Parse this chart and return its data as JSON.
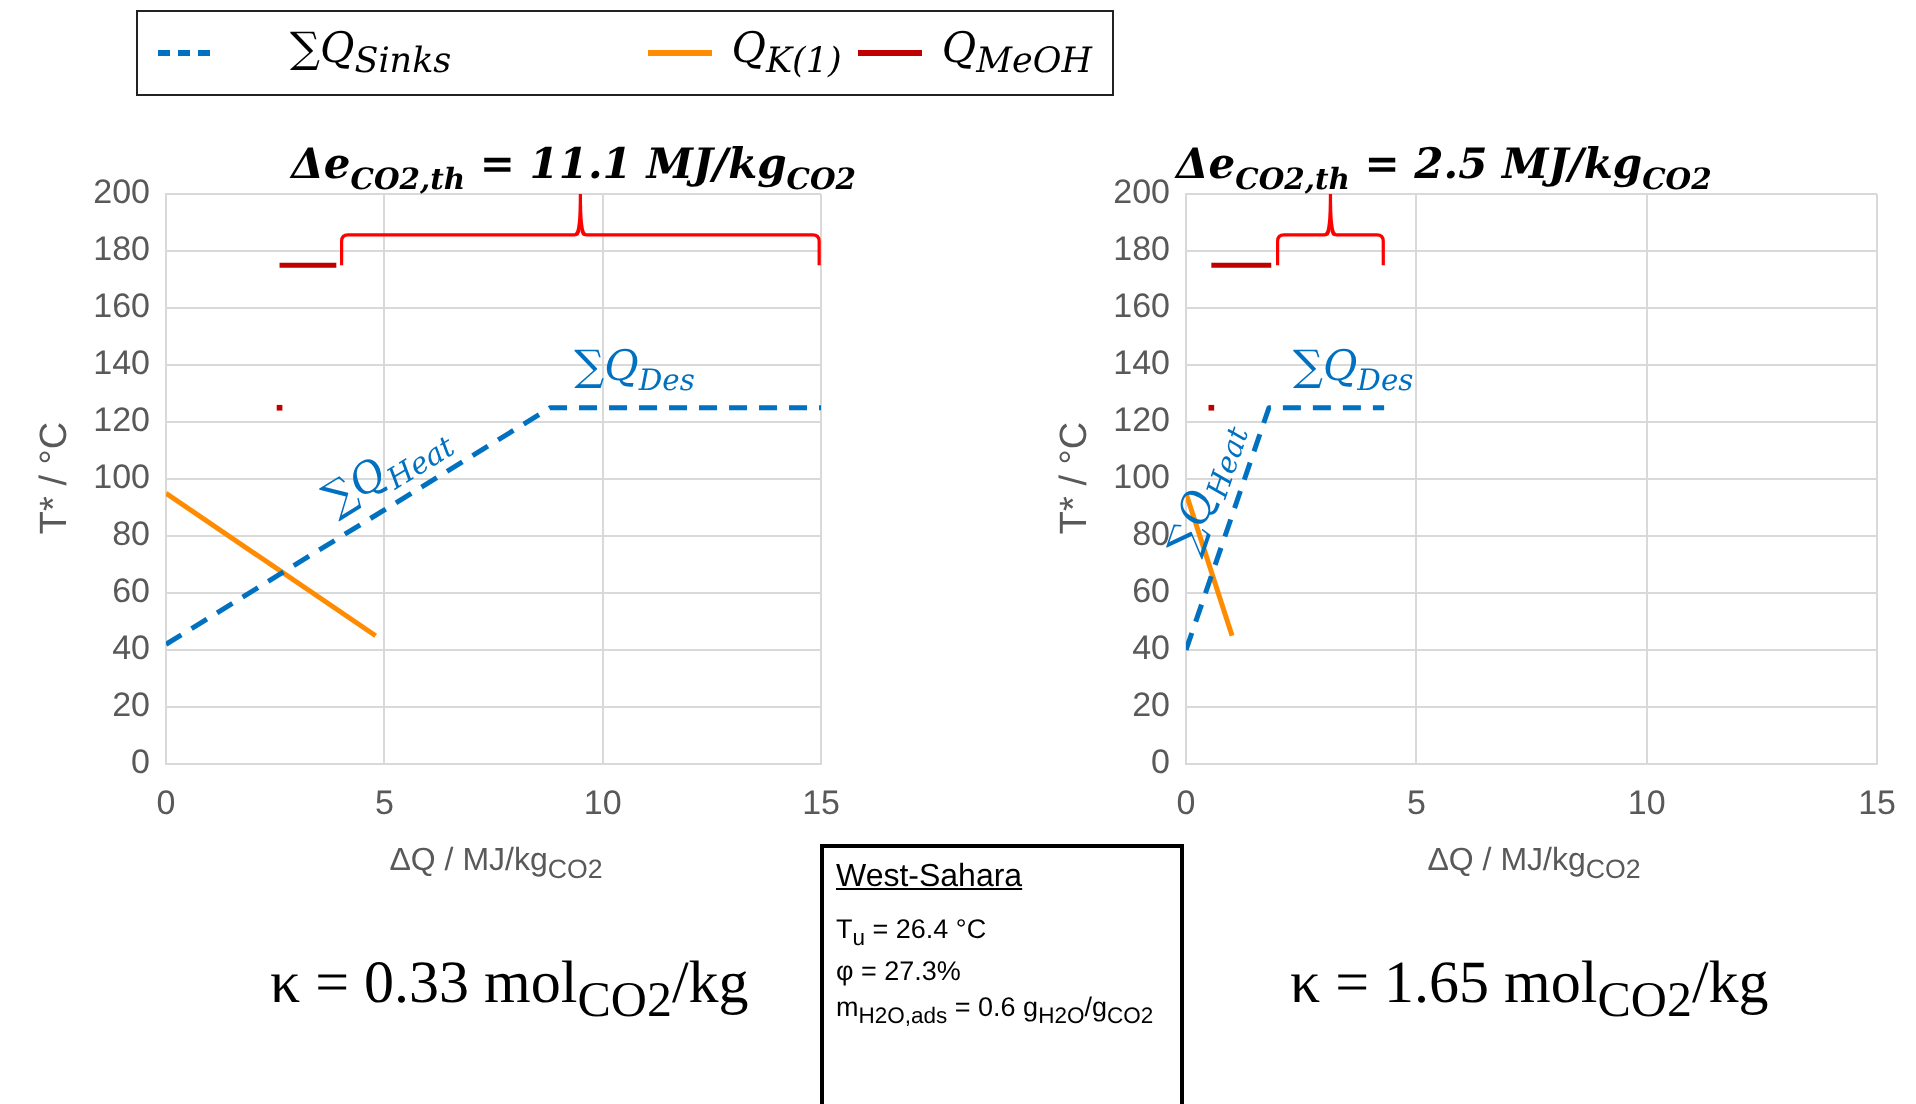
{
  "chart_data": [
    {
      "type": "line",
      "xlabel": "ΔQ  / MJ/kg$_{CO2}$",
      "ylabel": "T* / °C",
      "xlim": [
        0,
        15
      ],
      "xticks": [
        0,
        5,
        10,
        15
      ],
      "ylim": [
        0,
        200
      ],
      "yticks": [
        0,
        20,
        40,
        60,
        80,
        100,
        120,
        140,
        160,
        180,
        200
      ],
      "grid": true,
      "legend": "top",
      "marker": "none",
      "series": [
        {
          "name": "∑Q$_{Sinks}$",
          "color": "#0070c0",
          "line_style": "dashed",
          "x": [
            0,
            8.8,
            15
          ],
          "values": [
            42,
            125,
            125
          ]
        },
        {
          "name": "Q$_{K(1)}$",
          "color": "#ff8c00",
          "x": [
            0,
            4.8
          ],
          "values": [
            95,
            45
          ]
        },
        {
          "name": "Q$_{MeOH}$",
          "color": "#c00000",
          "x": [
            2.6,
            3.9
          ],
          "values": [
            175,
            175
          ]
        },
        {
          "type": "scatter",
          "marker": "square",
          "color": "#c00000",
          "x": [
            2.6
          ],
          "values": [
            125
          ]
        }
      ],
      "annotations": [
        "Δe$_{CO2,th}$ = 11.1 MJ/kg$_{CO2}$",
        "∑Q$_{Heat}$",
        "∑Q$_{Des}$",
        "κ = 0.33 mol$_{CO2}$/kg"
      ]
    },
    {
      "type": "line",
      "xlabel": "ΔQ  / MJ/kg$_{CO2}$",
      "ylabel": "T* / °C",
      "xlim": [
        0,
        15
      ],
      "xticks": [
        0,
        5,
        10,
        15
      ],
      "ylim": [
        0,
        200
      ],
      "yticks": [
        0,
        20,
        40,
        60,
        80,
        100,
        120,
        140,
        160,
        180,
        200
      ],
      "grid": true,
      "marker": "none",
      "series": [
        {
          "color": "#0070c0",
          "line_style": "dashed",
          "x": [
            0,
            1.8,
            4.3
          ],
          "values": [
            40,
            125,
            125
          ]
        },
        {
          "color": "#ff8c00",
          "x": [
            0,
            1.0
          ],
          "values": [
            95,
            45
          ]
        },
        {
          "color": "#c00000",
          "x": [
            0.55,
            1.85
          ],
          "values": [
            175,
            175
          ]
        },
        {
          "type": "scatter",
          "marker": "square",
          "color": "#c00000",
          "x": [
            0.55
          ],
          "values": [
            125
          ]
        }
      ],
      "annotations": [
        "Δe$_{CO2,th}$ = 2.5 MJ/kg$_{CO2}$",
        "∑Q$_{Heat}$",
        "∑Q$_{Des}$",
        "κ = 1.65 mol$_{CO2}$/kg"
      ]
    },
    {
      "type": "other",
      "title": "West-Sahara",
      "annotations": [
        "T$_{u}$ = 26.4 °C",
        "φ = 27.3%",
        "m$_{H2O,ads}$ = 0.6 g$_{H2O}$/g$_{CO2}$"
      ]
    }
  ]
}
